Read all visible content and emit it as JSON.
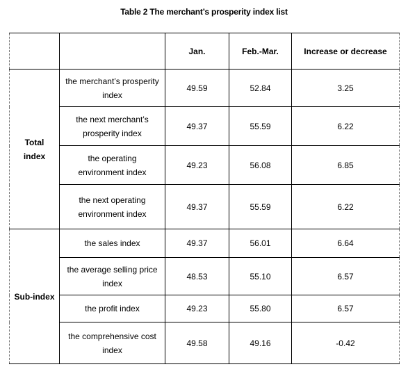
{
  "caption": "Table 2 The merchant’s prosperity index list",
  "header": {
    "group": "",
    "item": "",
    "jan": "Jan.",
    "feb": "Feb.-Mar.",
    "change": "Increase or decrease"
  },
  "groups": [
    {
      "label": "Total index",
      "rows": [
        {
          "item": "the merchant’s prosperity index",
          "jan": "49.59",
          "feb": "52.84",
          "change": "3.25"
        },
        {
          "item": "the next merchant’s prosperity index",
          "jan": "49.37",
          "feb": "55.59",
          "change": "6.22"
        },
        {
          "item": "the operating environment index",
          "jan": "49.23",
          "feb": "56.08",
          "change": "6.85"
        },
        {
          "item": "the next operating environment index",
          "jan": "49.37",
          "feb": "55.59",
          "change": "6.22"
        }
      ]
    },
    {
      "label": "Sub-index",
      "rows": [
        {
          "item": "the sales index",
          "jan": "49.37",
          "feb": "56.01",
          "change": "6.64"
        },
        {
          "item": "the average selling price index",
          "jan": "48.53",
          "feb": "55.10",
          "change": "6.57"
        },
        {
          "item": "the profit index",
          "jan": "49.23",
          "feb": "55.80",
          "change": "6.57"
        },
        {
          "item": "the comprehensive cost index",
          "jan": "49.58",
          "feb": "49.16",
          "change": "-0.42"
        }
      ]
    }
  ]
}
